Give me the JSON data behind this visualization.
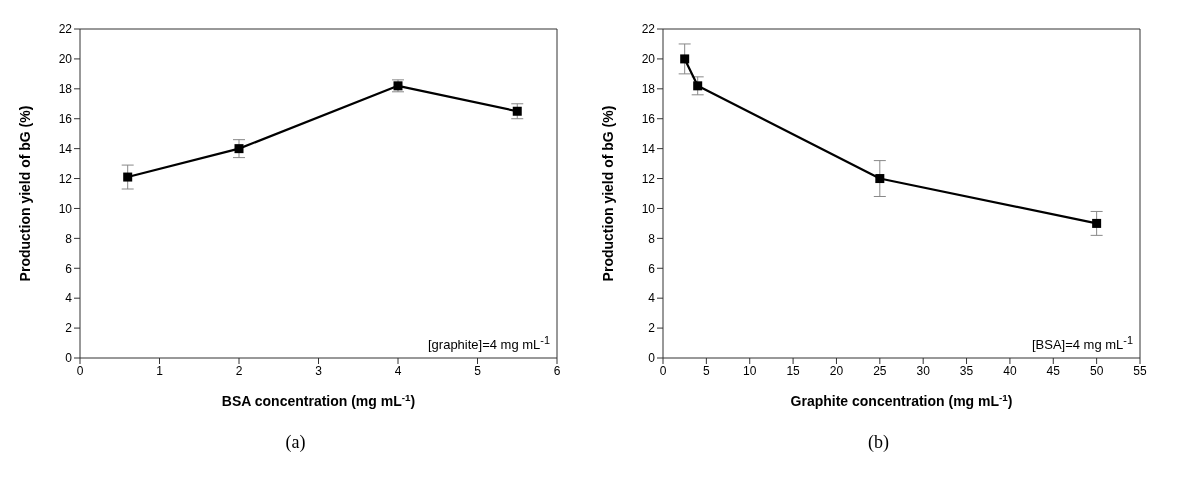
{
  "chart_data": [
    {
      "type": "line",
      "title": "(a)",
      "xlabel": "BSA concentration (mg mL$^{-1}$)",
      "ylabel": "Production yield of bG (%)",
      "annotations": [
        "[graphite]=4 mg mL$^{-1}$"
      ],
      "x": [
        0.6,
        2,
        4,
        5.5
      ],
      "series": [
        {
          "color": "#000000",
          "values": [
            12.1,
            14.0,
            18.2,
            16.5
          ],
          "errors": [
            0.8,
            0.6,
            0.4,
            0.5
          ]
        }
      ],
      "xlim": [
        0,
        6
      ],
      "xticks": [
        0,
        1,
        2,
        3,
        4,
        5,
        6
      ],
      "ylim": [
        0,
        22
      ],
      "yticks": [
        0,
        2,
        4,
        6,
        8,
        10,
        12,
        14,
        16,
        18,
        20,
        22
      ],
      "marker": "square",
      "line_style": "solid"
    },
    {
      "type": "line",
      "title": "(b)",
      "xlabel": "Graphite concentration (mg mL$^{-1}$)",
      "ylabel": "Production yield of bG (%)",
      "annotations": [
        "[BSA]=4 mg mL$^{-1}$"
      ],
      "x": [
        2.5,
        4,
        25,
        50
      ],
      "series": [
        {
          "color": "#000000",
          "values": [
            20.0,
            18.2,
            12.0,
            9.0
          ],
          "errors": [
            1.0,
            0.6,
            1.2,
            0.8
          ]
        }
      ],
      "xlim": [
        0,
        55
      ],
      "xticks": [
        0,
        5,
        10,
        15,
        20,
        25,
        30,
        35,
        40,
        45,
        50,
        55
      ],
      "ylim": [
        0,
        22
      ],
      "yticks": [
        0,
        2,
        4,
        6,
        8,
        10,
        12,
        14,
        16,
        18,
        20,
        22
      ],
      "marker": "square",
      "line_style": "solid"
    }
  ]
}
